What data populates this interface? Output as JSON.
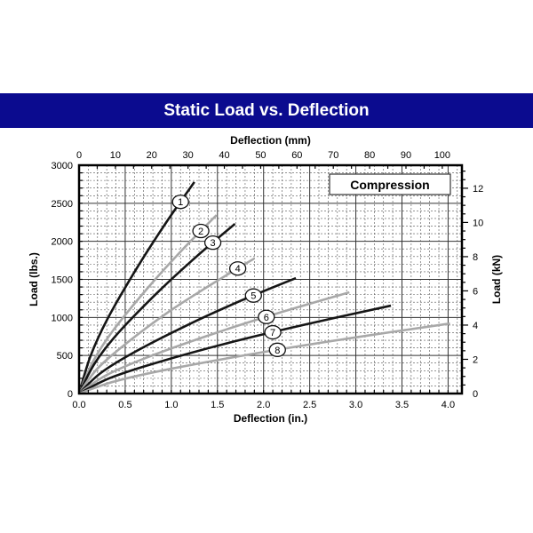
{
  "header": {
    "title": "Static Load vs. Deflection"
  },
  "colors": {
    "header_bg": "#0b0b8f",
    "dark_curve": "#151515",
    "light_curve": "#a8a8a8"
  },
  "chart_data": {
    "type": "line",
    "title": "Static Load vs. Deflection",
    "annotation": "Compression",
    "xlabel": "Deflection (in.)",
    "x2label": "Deflection (mm)",
    "ylabel": "Load (lbs.)",
    "y2label": "Load (kN)",
    "xlim": [
      0,
      4.15
    ],
    "ylim": [
      0,
      3000
    ],
    "xticks": [
      "0.0",
      "0.5",
      "1.0",
      "1.5",
      "2.0",
      "2.5",
      "3.0",
      "3.5",
      "4.0"
    ],
    "x2ticks": [
      "0",
      "10",
      "20",
      "30",
      "40",
      "50",
      "60",
      "70",
      "80",
      "90",
      "100"
    ],
    "yticks": [
      "0",
      "500",
      "1000",
      "1500",
      "2000",
      "2500",
      "3000"
    ],
    "y2ticks": [
      "0",
      "2",
      "4",
      "6",
      "8",
      "10",
      "12"
    ],
    "grid": true,
    "series": [
      {
        "name": "1",
        "shade": "dark",
        "label_x": 1.1,
        "x": [
          0,
          0.125,
          0.31,
          0.63,
          0.94,
          1.25
        ],
        "y": [
          0,
          495,
          985,
          1655,
          2240,
          2780
        ]
      },
      {
        "name": "2",
        "shade": "light",
        "label_x": 1.32,
        "x": [
          0,
          0.15,
          0.37,
          0.75,
          1.12,
          1.49
        ],
        "y": [
          0,
          417,
          830,
          1395,
          1890,
          2345
        ]
      },
      {
        "name": "3",
        "shade": "dark",
        "label_x": 1.45,
        "x": [
          0,
          0.17,
          0.42,
          0.85,
          1.27,
          1.69
        ],
        "y": [
          0,
          397,
          790,
          1327,
          1797,
          2230
        ]
      },
      {
        "name": "4",
        "shade": "light",
        "label_x": 1.72,
        "x": [
          0,
          0.19,
          0.48,
          0.95,
          1.43,
          1.9
        ],
        "y": [
          0,
          316,
          628,
          1056,
          1431,
          1775
        ]
      },
      {
        "name": "5",
        "shade": "dark",
        "label_x": 1.89,
        "x": [
          0,
          0.235,
          0.59,
          1.18,
          1.76,
          2.35
        ],
        "y": [
          0,
          270,
          537,
          903,
          1223,
          1517
        ]
      },
      {
        "name": "6",
        "shade": "light",
        "label_x": 2.03,
        "x": [
          0,
          0.29,
          0.73,
          1.47,
          2.2,
          2.93
        ],
        "y": [
          0,
          237,
          471,
          791,
          1072,
          1330
        ]
      },
      {
        "name": "7",
        "shade": "dark",
        "label_x": 2.1,
        "x": [
          0,
          0.34,
          0.85,
          1.69,
          2.54,
          3.38
        ],
        "y": [
          0,
          206,
          409,
          687,
          931,
          1155
        ]
      },
      {
        "name": "8",
        "shade": "light",
        "label_x": 2.15,
        "x": [
          0,
          0.4,
          1.0,
          2.01,
          3.02,
          4.02
        ],
        "y": [
          0,
          164,
          326,
          547,
          742,
          920
        ]
      }
    ]
  }
}
